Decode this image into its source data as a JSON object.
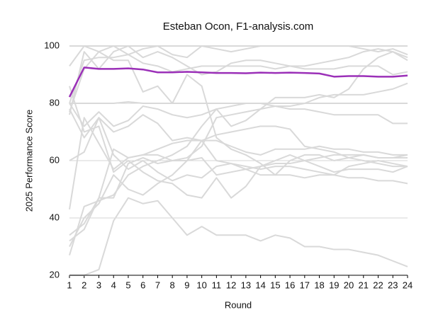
{
  "chart_data": {
    "type": "line",
    "title": "Esteban Ocon, F1-analysis.com",
    "x_label": "Round",
    "y_label": "2025 Performance Score",
    "x": [
      1,
      2,
      3,
      4,
      5,
      6,
      7,
      8,
      9,
      10,
      11,
      12,
      13,
      14,
      15,
      16,
      17,
      18,
      19,
      20,
      21,
      22,
      23,
      24
    ],
    "xlim": [
      1,
      24
    ],
    "xticks": [
      1,
      2,
      3,
      4,
      5,
      6,
      7,
      8,
      9,
      10,
      11,
      12,
      13,
      14,
      15,
      16,
      17,
      18,
      19,
      20,
      21,
      22,
      23,
      24
    ],
    "ylim": [
      20,
      100
    ],
    "yticks": [
      20,
      40,
      60,
      80,
      100
    ],
    "grid": true,
    "series": [
      {
        "color": "#d9d9d9",
        "values": [
          100,
          100,
          100,
          100,
          100,
          100,
          100,
          100,
          100,
          100,
          100,
          100,
          100,
          100,
          100,
          100,
          100,
          100,
          100,
          100,
          100,
          100,
          100,
          100
        ]
      },
      {
        "color": "#d9d9d9",
        "values": [
          93,
          100,
          98,
          100,
          97,
          99,
          100,
          97,
          96,
          100,
          99,
          98,
          99,
          100,
          100,
          100,
          100,
          100,
          100,
          100,
          99,
          98,
          99,
          97
        ]
      },
      {
        "color": "#d9d9d9",
        "values": [
          80,
          80,
          80,
          80,
          80.5,
          80,
          80,
          80,
          80,
          80,
          80,
          80,
          80,
          80,
          80,
          80,
          80,
          80,
          80,
          80,
          80,
          80,
          80,
          80
        ]
      },
      {
        "color": "#d9d9d9",
        "values": [
          78,
          68,
          75,
          70,
          72,
          76,
          73,
          67,
          68,
          67,
          67,
          65,
          63,
          62,
          64,
          64,
          64,
          65,
          64,
          64,
          63,
          63,
          62,
          62
        ]
      },
      {
        "color": "#d9d9d9",
        "values": [
          43,
          75,
          66,
          57,
          61,
          62,
          62,
          60,
          61,
          65,
          75,
          76,
          77,
          78,
          79,
          78,
          78,
          77,
          76,
          76,
          76,
          76,
          73,
          73
        ]
      },
      {
        "color": "#d9d9d9",
        "values": [
          27,
          44,
          46,
          48,
          55,
          58,
          60,
          62,
          65,
          72,
          78,
          72,
          74,
          78,
          82,
          82,
          82,
          83,
          82,
          85,
          92,
          96,
          98,
          95
        ]
      },
      {
        "color": "#d9d9d9",
        "values": [
          30,
          40,
          45,
          55,
          50,
          48,
          52,
          55,
          60,
          67,
          60,
          59,
          58,
          57,
          58,
          58,
          57,
          56,
          55,
          58,
          59,
          60,
          59,
          58
        ]
      },
      {
        "color": "#d9d9d9",
        "values": [
          34,
          38,
          47,
          47,
          59,
          61,
          59,
          60,
          60,
          61,
          55,
          56,
          57,
          58,
          59,
          59,
          60,
          61,
          62,
          62,
          62,
          61,
          61,
          61
        ]
      },
      {
        "color": "#d9d9d9",
        "values": [
          20,
          20,
          22,
          39,
          47,
          45,
          46,
          40,
          34,
          37,
          34,
          34,
          34,
          32,
          34,
          33,
          30,
          30,
          29,
          29,
          28,
          27,
          25,
          23
        ]
      },
      {
        "color": "#d9d9d9",
        "values": [
          60,
          63,
          75,
          62,
          57,
          60,
          56,
          53,
          55,
          54,
          58,
          59,
          57,
          55,
          55,
          55,
          54,
          55,
          55,
          54,
          54,
          53,
          53,
          52
        ]
      },
      {
        "color": "#d9d9d9",
        "values": [
          77,
          92,
          98,
          95,
          95,
          84,
          86,
          80,
          90,
          86,
          68,
          64,
          62,
          59,
          55,
          60,
          62,
          62,
          60,
          61,
          62,
          61,
          61,
          62
        ]
      },
      {
        "color": "#d9d9d9",
        "values": [
          86,
          70,
          72,
          56,
          60,
          56,
          53,
          52,
          48,
          47,
          54,
          47,
          51,
          58,
          60,
          62,
          60,
          58,
          56,
          57,
          57,
          57,
          56,
          58
        ]
      },
      {
        "color": "#d9d9d9",
        "values": [
          76,
          98,
          92,
          98,
          100,
          96,
          98,
          96,
          93,
          90,
          91,
          94,
          95,
          95,
          94,
          93,
          92,
          92,
          92,
          93,
          93,
          93,
          90,
          91
        ]
      },
      {
        "color": "#d9d9d9",
        "values": [
          80,
          72,
          77,
          72,
          74,
          79,
          78,
          76,
          75,
          76,
          78,
          79,
          80,
          80,
          79,
          79,
          80,
          82,
          83,
          83,
          83,
          84,
          85,
          87
        ]
      },
      {
        "color": "#d9d9d9",
        "values": [
          32,
          36,
          47,
          64,
          61,
          62,
          64,
          66,
          67,
          67,
          69,
          70,
          71,
          72,
          72,
          71,
          65,
          64,
          63,
          61,
          60,
          59,
          58,
          58
        ]
      },
      {
        "color": "#d9d9d9",
        "values": [
          80,
          95,
          96,
          96,
          97,
          94,
          93,
          91,
          92,
          93,
          93,
          93,
          93,
          93,
          92,
          93,
          93,
          94,
          95,
          96,
          98,
          99,
          98,
          96
        ]
      },
      {
        "color": "#9b30b8",
        "values": [
          82.2,
          92.5,
          92,
          92,
          92.2,
          91.8,
          90.8,
          90.8,
          91,
          90.8,
          90.6,
          90.6,
          90.5,
          90.7,
          90.6,
          90.7,
          90.6,
          90.4,
          89.3,
          89.5,
          89.5,
          89.3,
          89.3,
          89.7
        ]
      }
    ]
  }
}
